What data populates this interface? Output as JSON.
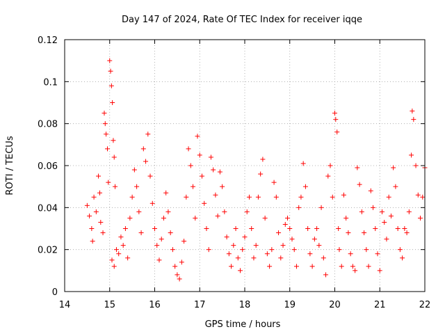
{
  "chart_data": {
    "type": "scatter",
    "title": "Day 147 of 2024, Rate Of TEC Index for receiver iqqe",
    "xlabel": "GPS time / hours",
    "ylabel": "ROTI / TECUs",
    "xlim": [
      14,
      22
    ],
    "ylim": [
      0,
      0.12
    ],
    "x_ticks": [
      14,
      15,
      16,
      17,
      18,
      19,
      20,
      21,
      22
    ],
    "x_tick_labels": [
      "14",
      "15",
      "16",
      "17",
      "18",
      "19",
      "20",
      "21",
      "22"
    ],
    "y_ticks": [
      0,
      0.02,
      0.04,
      0.06,
      0.08,
      0.1,
      0.12
    ],
    "y_tick_labels": [
      "0",
      "0.02",
      "0.04",
      "0.06",
      "0.08",
      "0.1",
      "0.12"
    ],
    "grid": true,
    "marker": "+",
    "series": [
      {
        "name": "ROTI",
        "color": "#ff0000",
        "points": [
          [
            14.5,
            0.041
          ],
          [
            14.55,
            0.036
          ],
          [
            14.6,
            0.03
          ],
          [
            14.62,
            0.024
          ],
          [
            14.65,
            0.045
          ],
          [
            14.7,
            0.038
          ],
          [
            14.75,
            0.055
          ],
          [
            14.78,
            0.047
          ],
          [
            14.8,
            0.033
          ],
          [
            14.85,
            0.028
          ],
          [
            14.88,
            0.085
          ],
          [
            14.9,
            0.08
          ],
          [
            14.92,
            0.075
          ],
          [
            14.95,
            0.068
          ],
          [
            14.97,
            0.052
          ],
          [
            15.0,
            0.11
          ],
          [
            15.02,
            0.105
          ],
          [
            15.04,
            0.098
          ],
          [
            15.06,
            0.09
          ],
          [
            15.08,
            0.072
          ],
          [
            15.1,
            0.064
          ],
          [
            15.12,
            0.05
          ],
          [
            15.05,
            0.015
          ],
          [
            15.1,
            0.012
          ],
          [
            15.15,
            0.02
          ],
          [
            15.2,
            0.018
          ],
          [
            15.25,
            0.026
          ],
          [
            15.3,
            0.022
          ],
          [
            15.35,
            0.03
          ],
          [
            15.4,
            0.016
          ],
          [
            15.45,
            0.035
          ],
          [
            15.5,
            0.045
          ],
          [
            15.55,
            0.058
          ],
          [
            15.6,
            0.05
          ],
          [
            15.65,
            0.038
          ],
          [
            15.7,
            0.028
          ],
          [
            15.75,
            0.068
          ],
          [
            15.8,
            0.062
          ],
          [
            15.85,
            0.075
          ],
          [
            15.9,
            0.055
          ],
          [
            15.95,
            0.042
          ],
          [
            16.0,
            0.03
          ],
          [
            16.05,
            0.022
          ],
          [
            16.1,
            0.015
          ],
          [
            16.15,
            0.025
          ],
          [
            16.2,
            0.035
          ],
          [
            16.25,
            0.047
          ],
          [
            16.3,
            0.038
          ],
          [
            16.35,
            0.028
          ],
          [
            16.4,
            0.02
          ],
          [
            16.45,
            0.012
          ],
          [
            16.5,
            0.008
          ],
          [
            16.55,
            0.006
          ],
          [
            16.6,
            0.014
          ],
          [
            16.65,
            0.024
          ],
          [
            16.7,
            0.045
          ],
          [
            16.75,
            0.068
          ],
          [
            16.8,
            0.06
          ],
          [
            16.85,
            0.05
          ],
          [
            16.9,
            0.035
          ],
          [
            16.95,
            0.074
          ],
          [
            17.0,
            0.065
          ],
          [
            17.05,
            0.055
          ],
          [
            17.1,
            0.042
          ],
          [
            17.15,
            0.03
          ],
          [
            17.2,
            0.02
          ],
          [
            17.25,
            0.064
          ],
          [
            17.3,
            0.058
          ],
          [
            17.35,
            0.046
          ],
          [
            17.4,
            0.036
          ],
          [
            17.45,
            0.057
          ],
          [
            17.5,
            0.05
          ],
          [
            17.55,
            0.038
          ],
          [
            17.6,
            0.026
          ],
          [
            17.65,
            0.018
          ],
          [
            17.7,
            0.012
          ],
          [
            17.75,
            0.022
          ],
          [
            17.8,
            0.03
          ],
          [
            17.85,
            0.016
          ],
          [
            17.9,
            0.01
          ],
          [
            17.95,
            0.02
          ],
          [
            18.0,
            0.026
          ],
          [
            18.05,
            0.038
          ],
          [
            18.1,
            0.045
          ],
          [
            18.15,
            0.03
          ],
          [
            18.2,
            0.016
          ],
          [
            18.25,
            0.022
          ],
          [
            18.3,
            0.045
          ],
          [
            18.35,
            0.056
          ],
          [
            18.4,
            0.063
          ],
          [
            18.45,
            0.035
          ],
          [
            18.5,
            0.018
          ],
          [
            18.55,
            0.012
          ],
          [
            18.6,
            0.02
          ],
          [
            18.65,
            0.052
          ],
          [
            18.7,
            0.045
          ],
          [
            18.75,
            0.028
          ],
          [
            18.8,
            0.016
          ],
          [
            18.85,
            0.022
          ],
          [
            18.9,
            0.032
          ],
          [
            18.95,
            0.035
          ],
          [
            19.0,
            0.03
          ],
          [
            19.05,
            0.025
          ],
          [
            19.1,
            0.02
          ],
          [
            19.15,
            0.012
          ],
          [
            19.2,
            0.04
          ],
          [
            19.25,
            0.045
          ],
          [
            19.3,
            0.061
          ],
          [
            19.35,
            0.05
          ],
          [
            19.4,
            0.03
          ],
          [
            19.45,
            0.018
          ],
          [
            19.5,
            0.012
          ],
          [
            19.55,
            0.025
          ],
          [
            19.6,
            0.03
          ],
          [
            19.65,
            0.022
          ],
          [
            19.7,
            0.04
          ],
          [
            19.75,
            0.016
          ],
          [
            19.8,
            0.008
          ],
          [
            19.85,
            0.055
          ],
          [
            19.9,
            0.06
          ],
          [
            19.95,
            0.045
          ],
          [
            20.0,
            0.085
          ],
          [
            20.02,
            0.082
          ],
          [
            20.05,
            0.076
          ],
          [
            20.08,
            0.03
          ],
          [
            20.1,
            0.02
          ],
          [
            20.15,
            0.012
          ],
          [
            20.2,
            0.046
          ],
          [
            20.25,
            0.035
          ],
          [
            20.3,
            0.028
          ],
          [
            20.35,
            0.018
          ],
          [
            20.4,
            0.012
          ],
          [
            20.45,
            0.01
          ],
          [
            20.5,
            0.059
          ],
          [
            20.55,
            0.051
          ],
          [
            20.6,
            0.038
          ],
          [
            20.65,
            0.028
          ],
          [
            20.7,
            0.02
          ],
          [
            20.75,
            0.012
          ],
          [
            20.8,
            0.048
          ],
          [
            20.85,
            0.04
          ],
          [
            20.9,
            0.03
          ],
          [
            20.95,
            0.018
          ],
          [
            21.0,
            0.01
          ],
          [
            21.05,
            0.038
          ],
          [
            21.1,
            0.033
          ],
          [
            21.15,
            0.025
          ],
          [
            21.2,
            0.045
          ],
          [
            21.25,
            0.036
          ],
          [
            21.3,
            0.059
          ],
          [
            21.35,
            0.05
          ],
          [
            21.4,
            0.03
          ],
          [
            21.45,
            0.02
          ],
          [
            21.5,
            0.016
          ],
          [
            21.55,
            0.03
          ],
          [
            21.6,
            0.028
          ],
          [
            21.65,
            0.038
          ],
          [
            21.7,
            0.065
          ],
          [
            21.72,
            0.086
          ],
          [
            21.75,
            0.082
          ],
          [
            21.8,
            0.06
          ],
          [
            21.85,
            0.046
          ],
          [
            21.9,
            0.035
          ],
          [
            21.95,
            0.045
          ],
          [
            22.0,
            0.059
          ]
        ]
      }
    ]
  }
}
